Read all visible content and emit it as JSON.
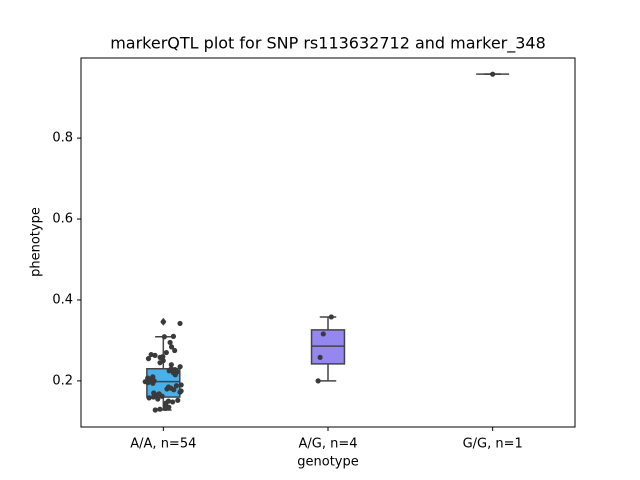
{
  "chart_data": {
    "type": "box",
    "title": "markerQTL plot for SNP rs113632712 and marker_348",
    "x_label": "genotype",
    "y_label": "phenotype",
    "categories": [
      "A/A, n=54",
      "A/G, n=4",
      "G/G, n=1"
    ],
    "colors": [
      "#48b1e9",
      "#9487f0",
      "#e48ff0"
    ],
    "ylim": [
      0.086,
      0.998
    ],
    "yticks": [
      0.2,
      0.4,
      0.6,
      0.8
    ],
    "boxes": [
      {
        "whisker_low": 0.128,
        "q1": 0.16,
        "median": 0.198,
        "q3": 0.23,
        "whisker_high": 0.309,
        "outliers": [
          0.346
        ],
        "points": [
          0.346,
          0.342,
          0.309,
          0.31,
          0.295,
          0.284,
          0.275,
          0.27,
          0.265,
          0.263,
          0.26,
          0.258,
          0.255,
          0.25,
          0.245,
          0.24,
          0.235,
          0.23,
          0.228,
          0.225,
          0.222,
          0.22,
          0.215,
          0.21,
          0.207,
          0.205,
          0.2,
          0.198,
          0.196,
          0.194,
          0.19,
          0.188,
          0.185,
          0.182,
          0.18,
          0.178,
          0.175,
          0.172,
          0.17,
          0.168,
          0.165,
          0.162,
          0.16,
          0.158,
          0.155,
          0.152,
          0.15,
          0.148,
          0.145,
          0.14,
          0.135,
          0.132,
          0.13,
          0.128
        ]
      },
      {
        "whisker_low": 0.2,
        "q1": 0.242,
        "median": 0.286,
        "q3": 0.326,
        "whisker_high": 0.358,
        "outliers": [],
        "points": [
          0.358,
          0.316,
          0.258,
          0.2
        ]
      },
      {
        "whisker_low": 0.958,
        "q1": 0.958,
        "median": 0.958,
        "q3": 0.958,
        "whisker_high": 0.958,
        "outliers": [],
        "points": [
          0.958
        ]
      }
    ]
  }
}
